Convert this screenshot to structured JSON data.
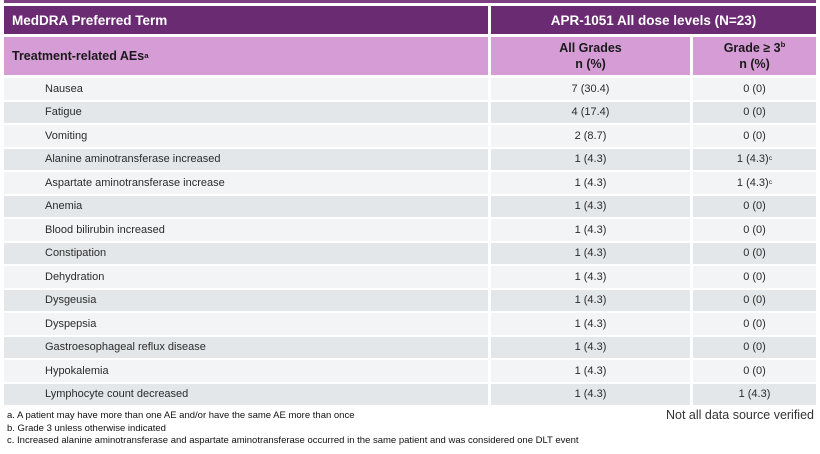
{
  "header": {
    "col1_title": "MedDRA Preferred Term",
    "col2_title": "APR-1051 All dose levels (N=23)"
  },
  "subheader": {
    "row_label": "Treatment-related AEs",
    "row_label_sup": "a",
    "all_grades_line1": "All Grades",
    "all_grades_line2": "n (%)",
    "grade3_line1": "Grade ≥ 3",
    "grade3_sup": "b",
    "grade3_line2": "n (%)"
  },
  "table": {
    "rows": [
      {
        "term": "Nausea",
        "all_grades": "7 (30.4)",
        "grade3": "0 (0)"
      },
      {
        "term": "Fatigue",
        "all_grades": "4 (17.4)",
        "grade3": "0 (0)"
      },
      {
        "term": "Vomiting",
        "all_grades": "2 (8.7)",
        "grade3": "0 (0)"
      },
      {
        "term": "Alanine aminotransferase increased",
        "all_grades": "1 (4.3)",
        "grade3": "1 (4.3)",
        "grade3_sup": "c"
      },
      {
        "term": "Aspartate aminotransferase increase",
        "all_grades": "1 (4.3)",
        "grade3": "1 (4.3)",
        "grade3_sup": "c"
      },
      {
        "term": "Anemia",
        "all_grades": "1 (4.3)",
        "grade3": "0 (0)"
      },
      {
        "term": "Blood bilirubin increased",
        "all_grades": "1 (4.3)",
        "grade3": "0 (0)"
      },
      {
        "term": "Constipation",
        "all_grades": "1 (4.3)",
        "grade3": "0 (0)"
      },
      {
        "term": "Dehydration",
        "all_grades": "1 (4.3)",
        "grade3": "0 (0)"
      },
      {
        "term": "Dysgeusia",
        "all_grades": "1 (4.3)",
        "grade3": "0 (0)"
      },
      {
        "term": "Dyspepsia",
        "all_grades": "1 (4.3)",
        "grade3": "0 (0)"
      },
      {
        "term": "Gastroesophageal reflux disease",
        "all_grades": "1 (4.3)",
        "grade3": "0 (0)"
      },
      {
        "term": "Hypokalemia",
        "all_grades": "1 (4.3)",
        "grade3": "0 (0)"
      },
      {
        "term": "Lymphocyte count decreased",
        "all_grades": "1 (4.3)",
        "grade3": "1 (4.3)"
      }
    ]
  },
  "footnotes": [
    "a. A patient may have more than one AE and/or have the same AE more than once",
    "b. Grade 3 unless otherwise indicated",
    "c. Increased alanine aminotransferase and aspartate aminotransferase occurred in the same patient and was considered one DLT event"
  ],
  "disclaimer": "Not all data source verified",
  "colors": {
    "header_dark_purple": "#6b2b73",
    "header_light_purple": "#d59cd6",
    "row_light": "#f3f4f6",
    "row_dark": "#e3e7ea",
    "top_strip": "#7b3f82"
  }
}
